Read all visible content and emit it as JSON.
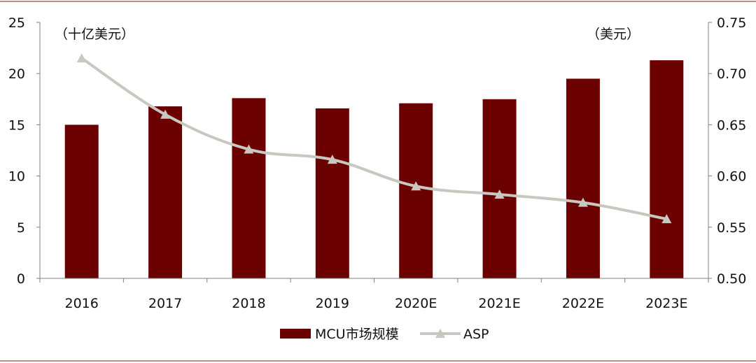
{
  "chart_data": {
    "type": "bar",
    "categories": [
      "2016",
      "2017",
      "2018",
      "2019",
      "2020E",
      "2021E",
      "2022E",
      "2023E"
    ],
    "series": [
      {
        "name": "MCU市场规模",
        "type": "bar",
        "axis": "left",
        "color": "#6b0000",
        "values": [
          15.0,
          16.8,
          17.6,
          16.6,
          17.1,
          17.5,
          19.5,
          21.3
        ]
      },
      {
        "name": "ASP",
        "type": "line",
        "axis": "right",
        "color": "#c8c8c0",
        "marker": "triangle",
        "values": [
          0.715,
          0.66,
          0.626,
          0.616,
          0.59,
          0.582,
          0.574,
          0.558
        ]
      }
    ],
    "left_axis": {
      "unit_label": "（十亿美元）",
      "ylim": [
        0,
        25
      ],
      "ticks": [
        "0",
        "5",
        "10",
        "15",
        "20",
        "25"
      ]
    },
    "right_axis": {
      "unit_label": "（美元）",
      "ylim": [
        0.5,
        0.75
      ],
      "ticks": [
        "0.50",
        "0.55",
        "0.60",
        "0.65",
        "0.70",
        "0.75"
      ]
    },
    "grid": false,
    "legend_position": "bottom-center"
  },
  "colors": {
    "bar": "#6b0000",
    "line": "#c8c8c0",
    "axis": "#808080",
    "frame_line": "#8b1a1a"
  }
}
